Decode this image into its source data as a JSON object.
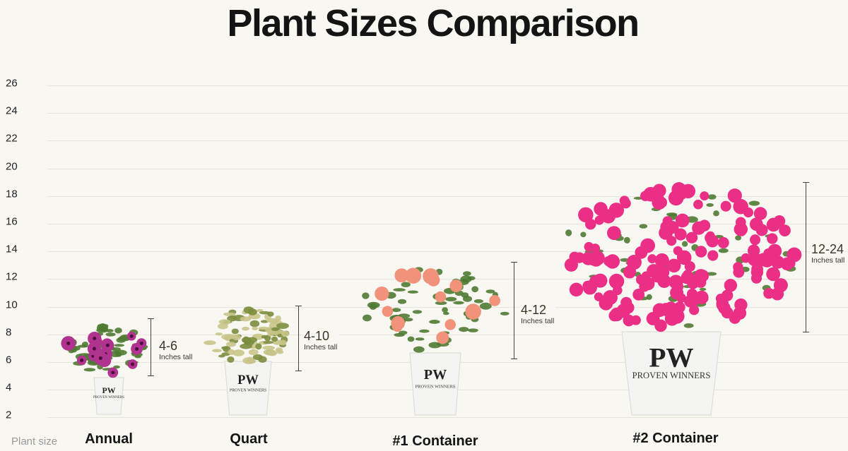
{
  "title": "Plant Sizes Comparison",
  "y_axis": {
    "name": "Plant size",
    "ticks": [
      "26",
      "24",
      "22",
      "20",
      "18",
      "16",
      "14",
      "12",
      "10",
      "8",
      "6",
      "4",
      "2"
    ]
  },
  "plants": [
    {
      "category": "Annual",
      "range": "4-6",
      "unit": "Inches tall",
      "flower_color": "#b0338f",
      "pot_brand": "PW PROVEN WINNERS"
    },
    {
      "category": "Quart",
      "range": "4-10",
      "unit": "Inches tall",
      "flower_color": "#e8e2b8",
      "pot_brand": "PW PROVEN WINNERS"
    },
    {
      "category": "#1 Container",
      "range": "4-12",
      "unit": "Inches tall",
      "flower_color": "#f0937a",
      "pot_brand": "PW PROVEN WINNERS"
    },
    {
      "category": "#2 Container",
      "range": "12-24",
      "unit": "Inches tall",
      "flower_color": "#ec2f86",
      "pot_brand": "PW PROVEN WINNERS"
    }
  ],
  "colors": {
    "background": "#f8f7f2",
    "leaf": "#4f7a32",
    "pot": "#f4f4f2"
  }
}
